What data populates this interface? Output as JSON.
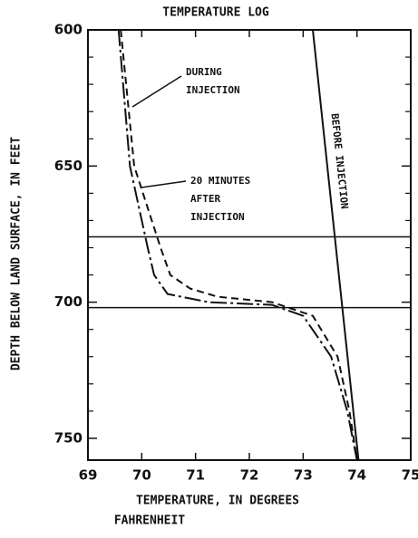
{
  "chart_data": {
    "type": "line",
    "title": "TEMPERATURE LOG",
    "ylabel": "DEPTH BELOW LAND SURFACE, IN FEET",
    "xlabel": [
      "TEMPERATURE, IN DEGREES",
      "FAHRENHEIT"
    ],
    "xlim": [
      69,
      75
    ],
    "xticks": [
      69,
      70,
      71,
      72,
      73,
      74,
      75
    ],
    "ylim": [
      600,
      758
    ],
    "yticks": [
      600,
      650,
      700,
      750
    ],
    "yminor_ticks": [
      610,
      620,
      630,
      640,
      660,
      670,
      680,
      690,
      710,
      720,
      730,
      740
    ],
    "y_inverted": true,
    "hlines": [
      676,
      702
    ],
    "series": [
      {
        "name": [
          "DURING",
          "INJECTION"
        ],
        "color": "#111",
        "dash": "8,5",
        "x": [
          69.61,
          69.86,
          70.35,
          70.53,
          70.9,
          71.41,
          72.42,
          73.18,
          73.64,
          73.86,
          74.0
        ],
        "y": [
          600,
          650,
          680,
          690,
          695,
          698,
          700,
          705,
          720,
          740,
          758
        ]
      },
      {
        "name": [
          "20 MINUTES",
          "AFTER",
          "INJECTION"
        ],
        "color": "#111",
        "dash": "18,4,3,4",
        "x": [
          69.57,
          69.78,
          70.11,
          70.23,
          70.48,
          71.24,
          72.42,
          73.0,
          73.52,
          73.82,
          74.0
        ],
        "y": [
          600,
          650,
          680,
          690,
          697,
          700,
          701,
          705,
          720,
          740,
          758
        ]
      },
      {
        "name": "BEFORE INJECTION",
        "color": "#111",
        "dash": "",
        "x": [
          73.18,
          74.03
        ],
        "y": [
          600,
          758
        ]
      }
    ]
  }
}
